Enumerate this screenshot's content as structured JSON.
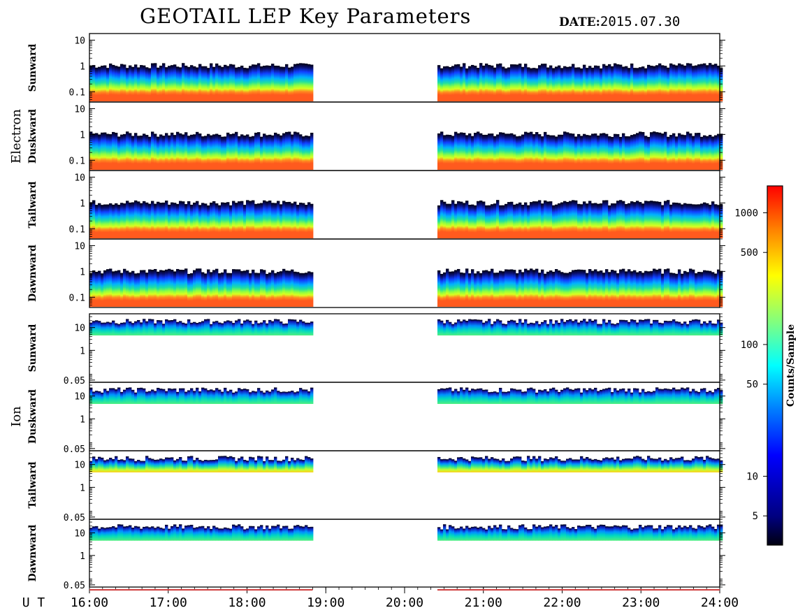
{
  "header": {
    "title": "GEOTAIL LEP Key Parameters",
    "date_label": "DATE:",
    "date_value": "2015.07.30"
  },
  "chart_data": {
    "type": "heatmap",
    "x_axis": {
      "label": "U T",
      "range": [
        "16:00",
        "24:00"
      ],
      "tick_labels": [
        "16:00",
        "17:00",
        "18:00",
        "19:00",
        "20:00",
        "21:00",
        "22:00",
        "23:00",
        "24:00"
      ]
    },
    "colorbar": {
      "label": "Counts/Sample",
      "scale": "log",
      "range": [
        3,
        1600
      ],
      "tick_labels": [
        "5",
        "10",
        "50",
        "100",
        "500",
        "1000"
      ],
      "colormap": "jet"
    },
    "groups": [
      {
        "name": "Electron",
        "y_tick_labels": [
          "10",
          "1",
          "0.1"
        ],
        "y_range": [
          0.04,
          18
        ],
        "panels": [
          {
            "name": "Sunward"
          },
          {
            "name": "Duskward"
          },
          {
            "name": "Tailward"
          },
          {
            "name": "Dawnward"
          }
        ],
        "data_intervals_ut": [
          [
            "16:00",
            "18:50"
          ],
          [
            "20:25",
            "24:00"
          ]
        ]
      },
      {
        "name": "Ion",
        "y_tick_labels": [
          "10",
          "1",
          "0.05"
        ],
        "y_range": [
          0.04,
          40
        ],
        "panels": [
          {
            "name": "Sunward"
          },
          {
            "name": "Duskward"
          },
          {
            "name": "Tailward"
          },
          {
            "name": "Dawnward"
          }
        ],
        "data_intervals_ut": [
          [
            "16:00",
            "18:50"
          ],
          [
            "20:25",
            "24:00"
          ]
        ]
      }
    ]
  },
  "colors": {
    "background": "#ffffff",
    "axis": "#000000",
    "coverage_bar": "#d04040"
  }
}
